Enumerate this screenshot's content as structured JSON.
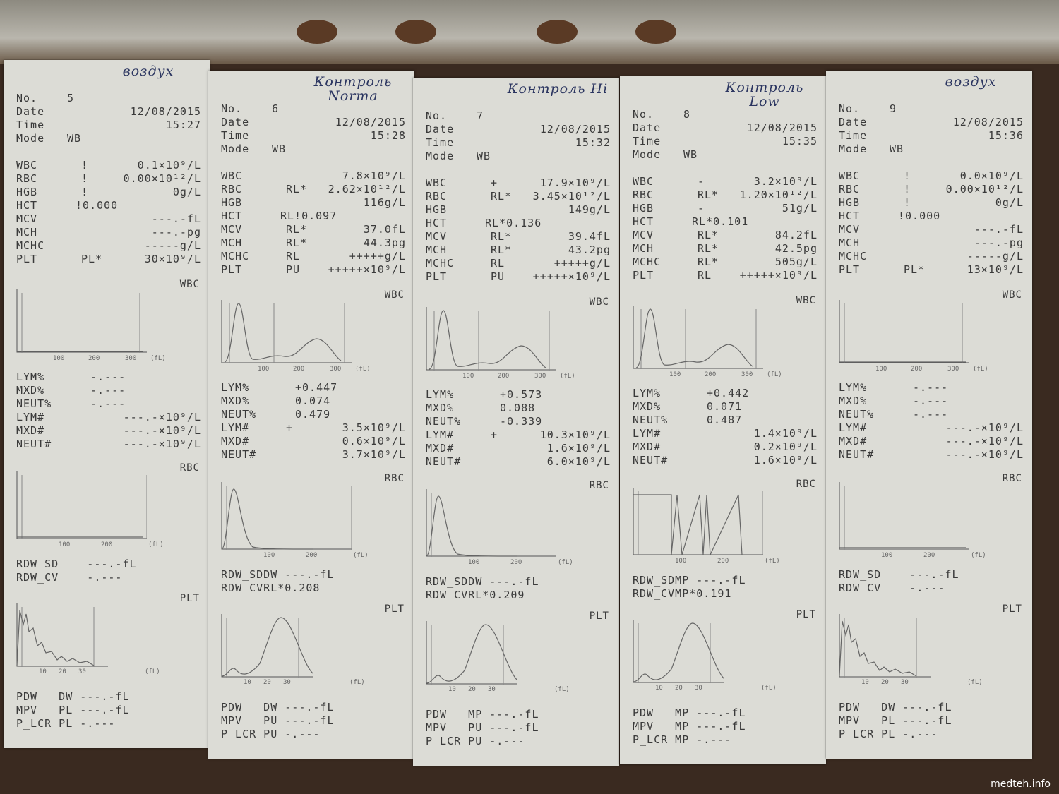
{
  "watermark": "medteh.info",
  "slips": [
    {
      "note": "воздух",
      "no": "5",
      "date": "12/08/2015",
      "time": "15:27",
      "mode": "WB",
      "params": [
        [
          "WBC",
          "!",
          "0.1×10⁹/L"
        ],
        [
          "RBC",
          "!",
          "0.00×10¹²/L"
        ],
        [
          "HGB",
          "!",
          "0g/L"
        ],
        [
          "HCT",
          "",
          "!0.000"
        ],
        [
          "MCV",
          "",
          "---.-fL"
        ],
        [
          "MCH",
          "",
          "---.-pg"
        ],
        [
          "MCHC",
          "",
          "-----g/L"
        ],
        [
          "PLT",
          "PL*",
          "30×10⁹/L"
        ]
      ],
      "diff": [
        [
          "LYM%",
          "",
          "-.---"
        ],
        [
          "MXD%",
          "",
          "-.---"
        ],
        [
          "NEUT%",
          "",
          "-.---"
        ],
        [
          "LYM#",
          "",
          "---.-×10⁹/L"
        ],
        [
          "MXD#",
          "",
          "---.-×10⁹/L"
        ],
        [
          "NEUT#",
          "",
          "---.-×10⁹/L"
        ]
      ],
      "rdw": [
        "RDW_SD    ---.-fL",
        "RDW_CV    -.---"
      ],
      "plt": [
        "PDW   DW ---.-fL",
        "MPV   PL ---.-fL",
        "P_LCR PL -.---"
      ]
    },
    {
      "note": "Контроль Norma",
      "no": "6",
      "date": "12/08/2015",
      "time": "15:28",
      "mode": "WB",
      "params": [
        [
          "WBC",
          "",
          "7.8×10⁹/L"
        ],
        [
          "RBC",
          "RL*",
          "2.62×10¹²/L"
        ],
        [
          "HGB",
          "",
          "116g/L"
        ],
        [
          "HCT",
          "",
          "RL!0.097"
        ],
        [
          "MCV",
          "RL*",
          "37.0fL"
        ],
        [
          "MCH",
          "RL*",
          "44.3pg"
        ],
        [
          "MCHC",
          "RL",
          "+++++g/L"
        ],
        [
          "PLT",
          "PU",
          "+++++×10⁹/L"
        ]
      ],
      "diff": [
        [
          "LYM%",
          "",
          "+0.447"
        ],
        [
          "MXD%",
          "",
          "0.074"
        ],
        [
          "NEUT%",
          "",
          "0.479"
        ],
        [
          "LYM#",
          "+",
          "3.5×10⁹/L"
        ],
        [
          "MXD#",
          "",
          "0.6×10⁹/L"
        ],
        [
          "NEUT#",
          "",
          "3.7×10⁹/L"
        ]
      ],
      "rdw": [
        "RDW_SDDW ---.-fL",
        "RDW_CVRL*0.208"
      ],
      "plt": [
        "PDW   DW ---.-fL",
        "MPV   PU ---.-fL",
        "P_LCR PU -.---"
      ]
    },
    {
      "note": "Контроль Hi",
      "no": "7",
      "date": "12/08/2015",
      "time": "15:32",
      "mode": "WB",
      "params": [
        [
          "WBC",
          "+",
          "17.9×10⁹/L"
        ],
        [
          "RBC",
          "RL*",
          "3.45×10¹²/L"
        ],
        [
          "HGB",
          "",
          "149g/L"
        ],
        [
          "HCT",
          "",
          "RL*0.136"
        ],
        [
          "MCV",
          "RL*",
          "39.4fL"
        ],
        [
          "MCH",
          "RL*",
          "43.2pg"
        ],
        [
          "MCHC",
          "RL",
          "+++++g/L"
        ],
        [
          "PLT",
          "PU",
          "+++++×10⁹/L"
        ]
      ],
      "diff": [
        [
          "LYM%",
          "",
          "+0.573"
        ],
        [
          "MXD%",
          "",
          "0.088"
        ],
        [
          "NEUT%",
          "",
          "-0.339"
        ],
        [
          "LYM#",
          "+",
          "10.3×10⁹/L"
        ],
        [
          "MXD#",
          "",
          "1.6×10⁹/L"
        ],
        [
          "NEUT#",
          "",
          "6.0×10⁹/L"
        ]
      ],
      "rdw": [
        "RDW_SDDW ---.-fL",
        "RDW_CVRL*0.209"
      ],
      "plt": [
        "PDW   MP ---.-fL",
        "MPV   PU ---.-fL",
        "P_LCR PU -.---"
      ]
    },
    {
      "note": "Контроль Low",
      "no": "8",
      "date": "12/08/2015",
      "time": "15:35",
      "mode": "WB",
      "params": [
        [
          "WBC",
          "-",
          "3.2×10⁹/L"
        ],
        [
          "RBC",
          "RL*",
          "1.20×10¹²/L"
        ],
        [
          "HGB",
          "-",
          "51g/L"
        ],
        [
          "HCT",
          "",
          "RL*0.101"
        ],
        [
          "MCV",
          "RL*",
          "84.2fL"
        ],
        [
          "MCH",
          "RL*",
          "42.5pg"
        ],
        [
          "MCHC",
          "RL*",
          "505g/L"
        ],
        [
          "PLT",
          "RL",
          "+++++×10⁹/L"
        ]
      ],
      "diff": [
        [
          "LYM%",
          "",
          "+0.442"
        ],
        [
          "MXD%",
          "",
          "0.071"
        ],
        [
          "NEUT%",
          "",
          "0.487"
        ],
        [
          "LYM#",
          "",
          "1.4×10⁹/L"
        ],
        [
          "MXD#",
          "",
          "0.2×10⁹/L"
        ],
        [
          "NEUT#",
          "",
          "1.6×10⁹/L"
        ]
      ],
      "rdw": [
        "RDW_SDMP ---.-fL",
        "RDW_CVMP*0.191"
      ],
      "plt": [
        "PDW   MP ---.-fL",
        "MPV   MP ---.-fL",
        "P_LCR MP -.---"
      ]
    },
    {
      "note": "воздух",
      "no": "9",
      "date": "12/08/2015",
      "time": "15:36",
      "mode": "WB",
      "params": [
        [
          "WBC",
          "!",
          "0.0×10⁹/L"
        ],
        [
          "RBC",
          "!",
          "0.00×10¹²/L"
        ],
        [
          "HGB",
          "!",
          "0g/L"
        ],
        [
          "HCT",
          "",
          "!0.000"
        ],
        [
          "MCV",
          "",
          "---.-fL"
        ],
        [
          "MCH",
          "",
          "---.-pg"
        ],
        [
          "MCHC",
          "",
          "-----g/L"
        ],
        [
          "PLT",
          "PL*",
          "13×10⁹/L"
        ]
      ],
      "diff": [
        [
          "LYM%",
          "",
          "-.---"
        ],
        [
          "MXD%",
          "",
          "-.---"
        ],
        [
          "NEUT%",
          "",
          "-.---"
        ],
        [
          "LYM#",
          "",
          "---.-×10⁹/L"
        ],
        [
          "MXD#",
          "",
          "---.-×10⁹/L"
        ],
        [
          "NEUT#",
          "",
          "---.-×10⁹/L"
        ]
      ],
      "rdw": [
        "RDW_SD    ---.-fL",
        "RDW_CV    -.---"
      ],
      "plt": [
        "PDW   DW ---.-fL",
        "MPV   PL ---.-fL",
        "P_LCR PL -.---"
      ]
    }
  ],
  "header_labels": {
    "no": "No.",
    "date": "Date",
    "time": "Time",
    "mode": "Mode"
  },
  "hist_labels": {
    "wbc": "WBC",
    "rbc": "RBC",
    "plt": "PLT"
  },
  "ticks": {
    "wbc": [
      "100",
      "200",
      "300",
      "(fL)"
    ],
    "rbc": [
      "100",
      "200",
      "(fL)"
    ],
    "plt": [
      "10",
      "20",
      "30",
      "(fL)"
    ]
  }
}
